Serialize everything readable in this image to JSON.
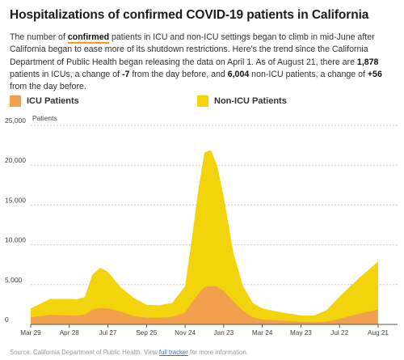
{
  "header": {
    "title": "Hospitalizations of confirmed COVID-19 patients in California"
  },
  "intro": {
    "p1": "The number of ",
    "highlight": "confirmed",
    "p2": " patients in ICU and non-ICU settings began to climb in mid-June after California began to ease more of its shutdown restrictions. Here's the trend since the California Department of Public Health began releasing the data on April 1. As of August 21, there are ",
    "icu_count": "1,878",
    "p3": " patients in ICUs, a change of ",
    "icu_change": "-7",
    "p4": " from the day before, and ",
    "nonicu_count": "6,004",
    "p5": " non-ICU patients, a change of ",
    "nonicu_change": "+56",
    "p6": " from the day before."
  },
  "source": {
    "prefix": "Source: California Department of Public Health. View ",
    "link": "full tracker",
    "suffix": " for more information."
  },
  "colors": {
    "icu": "#f2a04e",
    "nonicu": "#f2d40c",
    "grid": "#bcbcbc",
    "axis": "#555555",
    "highlight": "#f0a21b"
  },
  "chart_data": {
    "type": "area",
    "stacked": true,
    "ylabel": "Patients",
    "ylim": [
      0,
      25000
    ],
    "yticks": [
      "0",
      "5,000",
      "10,000",
      "15,000",
      "20,000",
      "25,000"
    ],
    "ytick_values": [
      0,
      5000,
      10000,
      15000,
      20000,
      25000
    ],
    "grid": "horizontal dotted",
    "legend": "top",
    "xticks": [
      "Mar 29",
      "Apr 28",
      "Jul 27",
      "Sep 25",
      "Nov 24",
      "Jan 23",
      "Mar 24",
      "May 23",
      "Jul 22",
      "Aug 21"
    ],
    "x": [
      "Mar 29",
      "Apr 10",
      "Apr 28",
      "May 20",
      "Jun 15",
      "Jul 5",
      "Jul 20",
      "Jul 27",
      "Aug 15",
      "Sep 5",
      "Sep 25",
      "Oct 20",
      "Nov 5",
      "Nov 24",
      "Dec 10",
      "Dec 22",
      "Jan 1",
      "Jan 8",
      "Jan 15",
      "Jan 23",
      "Feb 5",
      "Feb 20",
      "Mar 5",
      "Mar 24",
      "Apr 20",
      "May 23",
      "Jun 15",
      "Jul 5",
      "Jul 22",
      "Aug 5",
      "Aug 21"
    ],
    "series": [
      {
        "name": "ICU Patients",
        "values": [
          900,
          1200,
          1150,
          1100,
          1250,
          1850,
          2050,
          2000,
          1600,
          1050,
          850,
          850,
          950,
          1500,
          2700,
          3800,
          4700,
          4800,
          4750,
          4200,
          2900,
          1700,
          900,
          620,
          480,
          330,
          280,
          360,
          700,
          1350,
          1878
        ]
      },
      {
        "name": "Non-ICU Patients",
        "values": [
          1100,
          2000,
          2050,
          2050,
          2200,
          4400,
          5050,
          4600,
          3050,
          2300,
          1600,
          1550,
          1750,
          3300,
          7800,
          12800,
          16900,
          17100,
          15200,
          11800,
          6100,
          3100,
          1800,
          1380,
          1020,
          800,
          820,
          1440,
          2800,
          4450,
          6004
        ]
      }
    ]
  }
}
